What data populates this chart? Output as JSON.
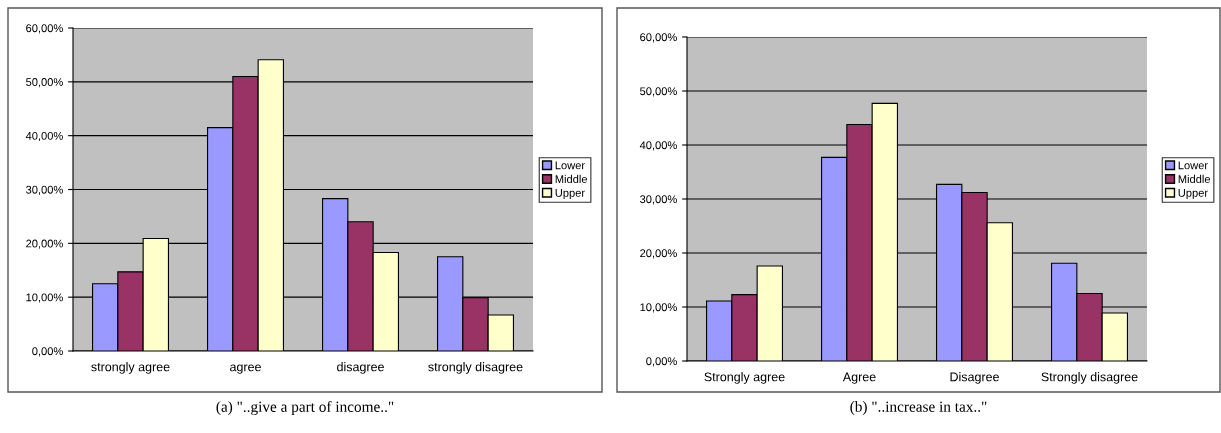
{
  "chart_data": [
    {
      "type": "bar",
      "categories": [
        "strongly agree",
        "agree",
        "disagree",
        "strongly disagree"
      ],
      "series": [
        {
          "name": "Lower",
          "color": "#9999ff",
          "values": [
            12.5,
            41.5,
            28.3,
            17.5
          ]
        },
        {
          "name": "Middle",
          "color": "#993366",
          "values": [
            14.7,
            51.0,
            24.0,
            9.9
          ]
        },
        {
          "name": "Upper",
          "color": "#ffffcc",
          "values": [
            20.9,
            54.1,
            18.3,
            6.7
          ]
        }
      ],
      "ylim": [
        0,
        60
      ],
      "yticks": [
        {
          "value": 0,
          "label": "0,00%"
        },
        {
          "value": 10,
          "label": "10,00%"
        },
        {
          "value": 20,
          "label": "20,00%"
        },
        {
          "value": 30,
          "label": "30,00%"
        },
        {
          "value": 40,
          "label": "40,00%"
        },
        {
          "value": 50,
          "label": "50,00%"
        },
        {
          "value": 60,
          "label": "60,00%"
        }
      ],
      "grid": "y",
      "legend": "right",
      "annotations": [
        "(a) \"..give a part of income..\""
      ]
    },
    {
      "type": "bar",
      "categories": [
        "Strongly agree",
        "Agree",
        "Disagree",
        "Strongly disagree"
      ],
      "series": [
        {
          "name": "Lower",
          "color": "#9999ff",
          "values": [
            11.1,
            37.7,
            32.7,
            18.1
          ]
        },
        {
          "name": "Middle",
          "color": "#993366",
          "values": [
            12.3,
            43.8,
            31.2,
            12.5
          ]
        },
        {
          "name": "Upper",
          "color": "#ffffcc",
          "values": [
            17.6,
            47.7,
            25.6,
            8.9
          ]
        }
      ],
      "ylim": [
        0,
        60
      ],
      "yticks": [
        {
          "value": 0,
          "label": "0,00%"
        },
        {
          "value": 10,
          "label": "10,00%"
        },
        {
          "value": 20,
          "label": "20,00%"
        },
        {
          "value": 30,
          "label": "30,00%"
        },
        {
          "value": 40,
          "label": "40,00%"
        },
        {
          "value": 50,
          "label": "50,00%"
        },
        {
          "value": 60,
          "label": "60,00%"
        }
      ],
      "grid": "y",
      "legend": "right",
      "annotations": [
        "(b) \"..increase in tax..\""
      ]
    }
  ]
}
